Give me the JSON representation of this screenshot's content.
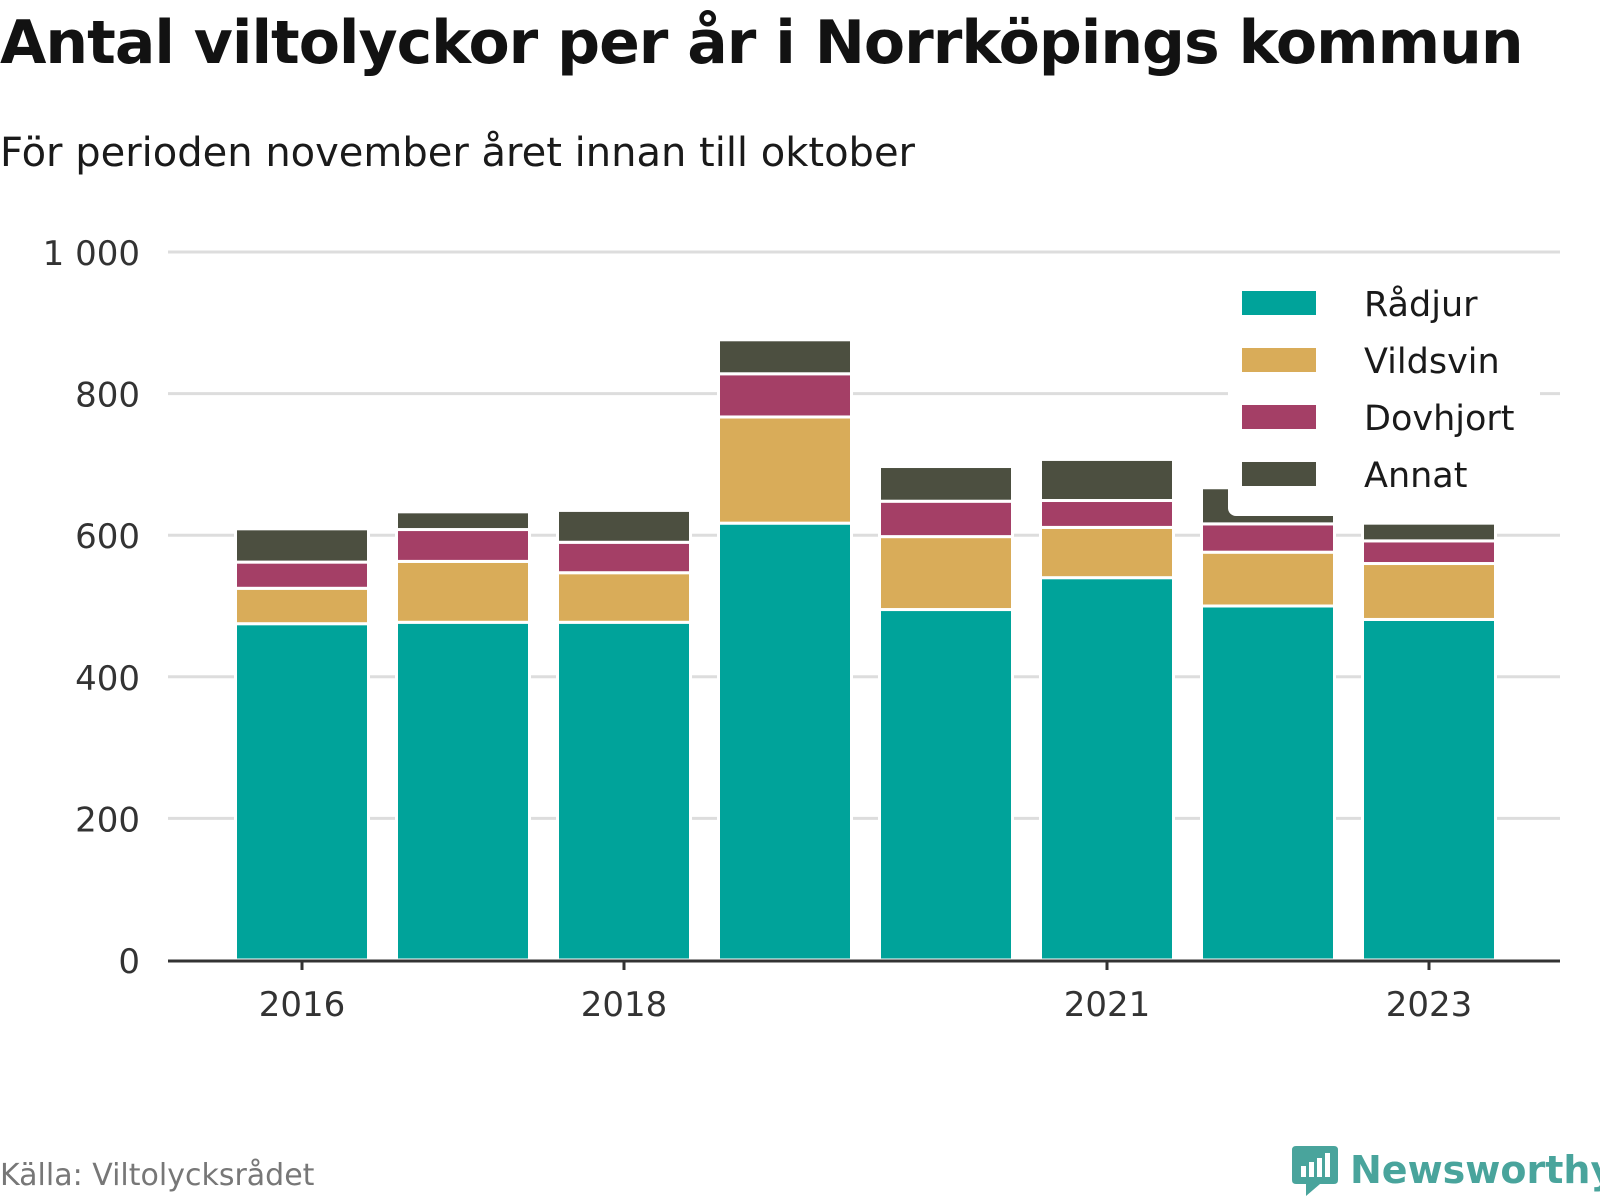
{
  "title": "Antal viltolyckor per år i Norrköpings kommun",
  "subtitle": "För perioden november året innan till oktober",
  "source": "Källa: Viltolycksrådet",
  "brand": "Newsworthy",
  "colors": {
    "Rådjur": "#00a39a",
    "Vildsvin": "#d9ac59",
    "Dovhjort": "#a43f66",
    "Annat": "#4c4f40",
    "grid": "#dddddd",
    "axis": "#333333",
    "brand": "#49a49c"
  },
  "chart_data": {
    "type": "bar",
    "stacked": true,
    "categories": [
      "2016",
      "2017",
      "2018",
      "2019",
      "2020",
      "2021",
      "2022",
      "2023"
    ],
    "x_tick_labels": [
      "2016",
      "",
      "2018",
      "",
      "",
      "2021",
      "",
      "2023"
    ],
    "y_ticks": [
      0,
      200,
      400,
      600,
      800,
      1000
    ],
    "y_tick_labels": [
      "0",
      "200",
      "400",
      "600",
      "800",
      "1 000"
    ],
    "ylim": [
      0,
      1000
    ],
    "grid": true,
    "legend_position": "top-right",
    "series": [
      {
        "name": "Rådjur",
        "values": [
          475,
          477,
          477,
          617,
          495,
          540,
          500,
          481
        ]
      },
      {
        "name": "Vildsvin",
        "values": [
          50,
          86,
          70,
          150,
          103,
          71,
          76,
          79
        ]
      },
      {
        "name": "Dovhjort",
        "values": [
          37,
          45,
          43,
          61,
          50,
          38,
          40,
          32
        ]
      },
      {
        "name": "Annat",
        "values": [
          47,
          25,
          45,
          48,
          49,
          58,
          51,
          25
        ]
      }
    ]
  }
}
